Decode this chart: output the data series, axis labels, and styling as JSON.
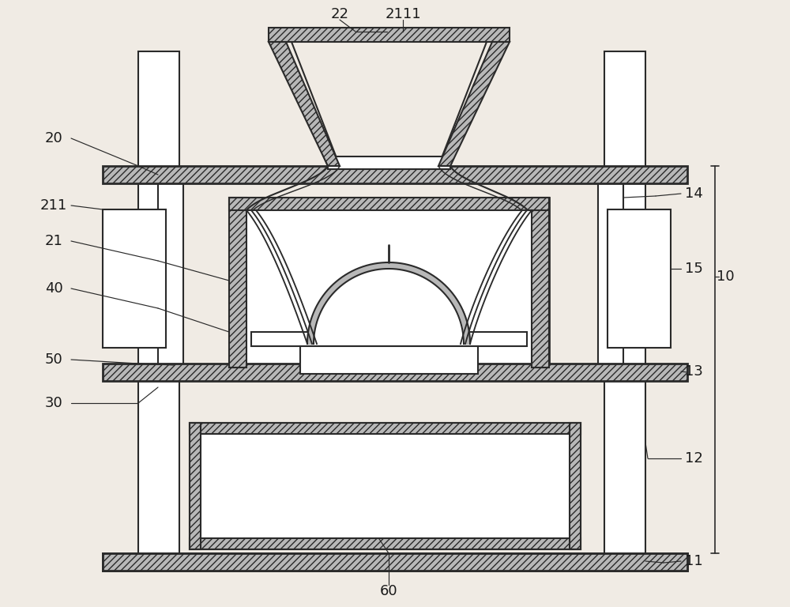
{
  "bg_color": "#f0ebe4",
  "line_color": "#2a2a2a",
  "lw_main": 1.5,
  "lw_thick": 2.0,
  "hatch_fc": "#b8b8b8",
  "white_fc": "#ffffff",
  "font_size": 13,
  "font_color": "#1a1a1a"
}
